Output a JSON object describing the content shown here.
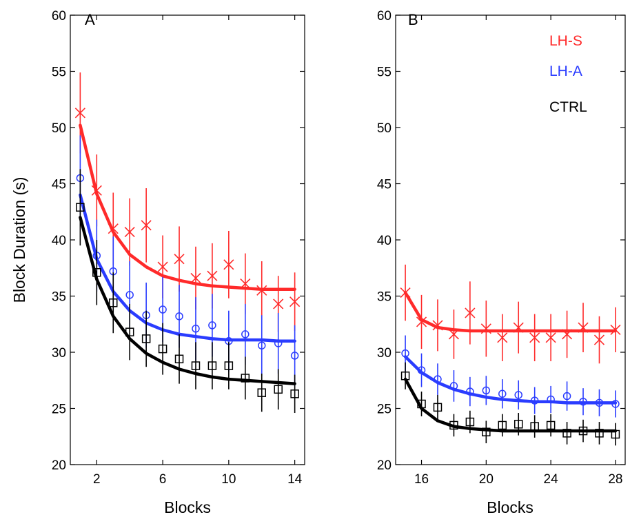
{
  "chart_data": [
    {
      "panel": "A",
      "type": "scatter",
      "xlabel": "Blocks",
      "ylabel": "Block Duration (s)",
      "xlim": [
        0.4,
        14.6
      ],
      "ylim": [
        20,
        60
      ],
      "xticks": [
        2,
        6,
        10,
        14
      ],
      "yticks": [
        20,
        25,
        30,
        35,
        40,
        45,
        50,
        55,
        60
      ],
      "series": [
        {
          "name": "LH-S",
          "color": "#ff2a2a",
          "marker": "x",
          "x": [
            1,
            2,
            3,
            4,
            5,
            6,
            7,
            8,
            9,
            10,
            11,
            12,
            13,
            14
          ],
          "y": [
            51.3,
            44.4,
            41.0,
            40.7,
            41.3,
            37.6,
            38.3,
            36.6,
            36.8,
            37.8,
            36.1,
            35.5,
            34.3,
            34.5
          ],
          "err": [
            3.6,
            3.2,
            3.2,
            3.0,
            3.3,
            2.8,
            2.9,
            2.8,
            2.9,
            3.0,
            2.7,
            2.6,
            2.5,
            2.6
          ],
          "fit": [
            50.2,
            44.1,
            40.7,
            38.7,
            37.6,
            36.8,
            36.4,
            36.1,
            35.9,
            35.8,
            35.7,
            35.6,
            35.6,
            35.6
          ]
        },
        {
          "name": "LH-A",
          "color": "#2a3cff",
          "marker": "o",
          "x": [
            1,
            2,
            3,
            4,
            5,
            6,
            7,
            8,
            9,
            10,
            11,
            12,
            13,
            14
          ],
          "y": [
            45.5,
            38.6,
            37.2,
            35.1,
            33.3,
            33.8,
            33.2,
            32.1,
            32.4,
            31.0,
            31.6,
            30.6,
            30.8,
            29.7
          ],
          "err": [
            3.8,
            3.2,
            3.1,
            3.0,
            2.9,
            2.9,
            2.8,
            2.8,
            2.8,
            2.7,
            2.7,
            2.7,
            2.7,
            2.7
          ],
          "fit": [
            44.0,
            38.3,
            35.4,
            33.7,
            32.6,
            32.0,
            31.6,
            31.4,
            31.2,
            31.1,
            31.1,
            31.1,
            31.0,
            31.0
          ]
        },
        {
          "name": "CTRL",
          "color": "#000000",
          "marker": "s",
          "x": [
            1,
            2,
            3,
            4,
            5,
            6,
            7,
            8,
            9,
            10,
            11,
            12,
            13,
            14
          ],
          "y": [
            42.9,
            37.1,
            34.4,
            31.8,
            31.2,
            30.3,
            29.4,
            28.8,
            28.8,
            28.8,
            27.7,
            26.4,
            26.7,
            26.3
          ],
          "err": [
            3.4,
            2.9,
            2.7,
            2.5,
            2.5,
            2.3,
            2.2,
            2.1,
            2.1,
            2.1,
            1.9,
            1.7,
            1.8,
            1.7
          ],
          "fit": [
            42.0,
            36.5,
            33.2,
            31.2,
            29.9,
            29.1,
            28.5,
            28.1,
            27.8,
            27.6,
            27.5,
            27.4,
            27.3,
            27.2
          ]
        }
      ]
    },
    {
      "panel": "B",
      "type": "scatter",
      "xlabel": "Blocks",
      "ylabel": "",
      "xlim": [
        14.4,
        28.6
      ],
      "ylim": [
        20,
        60
      ],
      "xticks": [
        16,
        20,
        24,
        28
      ],
      "yticks": [
        20,
        25,
        30,
        35,
        40,
        45,
        50,
        55,
        60
      ],
      "series": [
        {
          "name": "LH-S",
          "color": "#ff2a2a",
          "marker": "x",
          "x": [
            15,
            16,
            17,
            18,
            19,
            20,
            21,
            22,
            23,
            24,
            25,
            26,
            27,
            28
          ],
          "y": [
            35.3,
            32.7,
            32.4,
            31.6,
            33.5,
            32.1,
            31.3,
            32.2,
            31.3,
            31.3,
            31.6,
            32.2,
            31.1,
            32.0
          ],
          "err": [
            2.5,
            2.4,
            2.3,
            2.2,
            2.8,
            2.5,
            2.1,
            2.3,
            2.1,
            2.1,
            2.1,
            2.2,
            2.1,
            2.0
          ],
          "fit": [
            35.3,
            32.9,
            32.2,
            32.0,
            31.9,
            31.9,
            31.9,
            31.9,
            31.9,
            31.9,
            31.9,
            31.9,
            31.9,
            31.9
          ]
        },
        {
          "name": "LH-A",
          "color": "#2a3cff",
          "marker": "o",
          "x": [
            15,
            16,
            17,
            18,
            19,
            20,
            21,
            22,
            23,
            24,
            25,
            26,
            27,
            28
          ],
          "y": [
            29.9,
            28.4,
            27.6,
            27.0,
            26.5,
            26.6,
            26.3,
            26.2,
            25.7,
            25.8,
            26.1,
            25.6,
            25.5,
            25.4
          ],
          "err": [
            1.6,
            1.5,
            1.4,
            1.4,
            1.3,
            1.3,
            1.3,
            1.3,
            1.2,
            1.2,
            1.3,
            1.2,
            1.2,
            1.2
          ],
          "fit": [
            29.6,
            28.2,
            27.3,
            26.7,
            26.3,
            26.0,
            25.8,
            25.7,
            25.6,
            25.6,
            25.5,
            25.5,
            25.5,
            25.5
          ]
        },
        {
          "name": "CTRL",
          "color": "#000000",
          "marker": "s",
          "x": [
            15,
            16,
            17,
            18,
            19,
            20,
            21,
            22,
            23,
            24,
            25,
            26,
            27,
            28
          ],
          "y": [
            27.9,
            25.4,
            25.1,
            23.5,
            23.8,
            22.9,
            23.5,
            23.6,
            23.4,
            23.5,
            22.8,
            23.0,
            22.8,
            22.7
          ],
          "err": [
            1.2,
            1.1,
            1.1,
            1.0,
            1.0,
            1.0,
            1.0,
            1.0,
            1.0,
            1.0,
            1.0,
            1.0,
            1.0,
            1.0
          ],
          "fit": [
            27.6,
            25.0,
            23.9,
            23.4,
            23.2,
            23.1,
            23.0,
            23.0,
            23.0,
            23.0,
            23.0,
            23.0,
            23.0,
            23.0
          ]
        }
      ]
    }
  ],
  "legend": {
    "placement": "top-right of panel B",
    "items": [
      {
        "name": "LH-S",
        "color": "#ff2a2a"
      },
      {
        "name": "LH-A",
        "color": "#2a3cff"
      },
      {
        "name": "CTRL",
        "color": "#000000"
      }
    ]
  }
}
